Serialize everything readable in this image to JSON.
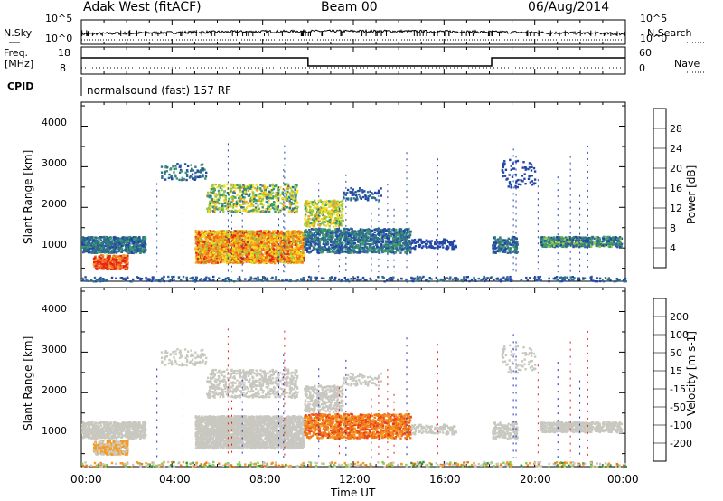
{
  "header": {
    "title": "Adak West (fitACF)",
    "beam": "Beam 00",
    "date": "06/Aug/2014"
  },
  "top_panels": {
    "nsky_label": "N.Sky",
    "nsearch_label": "N.Search",
    "freq_label_line1": "Freq.",
    "freq_label_line2": "[MHz]",
    "nave_label": "Nave",
    "cpid_label": "CPID",
    "cpid_text": "normalsound (fast) 157 RF",
    "noise_ticks_left": [
      "10^5",
      "10^0"
    ],
    "noise_ticks_right": [
      "10^5",
      "10^0"
    ],
    "freq_ticks": [
      "18",
      "8"
    ],
    "nave_ticks": [
      "60",
      "0"
    ]
  },
  "chart_data": [
    {
      "type": "heatmap",
      "name": "power",
      "ylabel": "Slant Range [km]",
      "yticks": [
        "1000",
        "2000",
        "3000",
        "4000"
      ],
      "ylim": [
        180,
        4590
      ],
      "xlim_hours": [
        0,
        24
      ],
      "colorbar_label": "Power [dB]",
      "colorbar_ticks": [
        "4",
        "8",
        "12",
        "16",
        "20",
        "24",
        "28"
      ],
      "colorbar_range": [
        0,
        32
      ]
    },
    {
      "type": "heatmap",
      "name": "velocity",
      "ylabel": "Slant Range [km]",
      "yticks": [
        "1000",
        "2000",
        "3000",
        "4000"
      ],
      "ylim": [
        180,
        4590
      ],
      "xlim_hours": [
        0,
        24
      ],
      "colorbar_label": "Velocity [m s-1]",
      "colorbar_ticks": [
        "200",
        "100",
        "50",
        "15",
        "-15",
        "-50",
        "-100",
        "-200"
      ]
    }
  ],
  "xaxis": {
    "ticks": [
      "00:00",
      "04:00",
      "08:00",
      "12:00",
      "16:00",
      "20:00",
      "00:00"
    ],
    "label": "Time UT"
  },
  "colors": {
    "power_scale": [
      "#1f1ff5",
      "#2346a8",
      "#2f6e8c",
      "#3d9a6a",
      "#9cc843",
      "#f5dd1f",
      "#f5a21f",
      "#f06e1a",
      "#e8231a"
    ],
    "velocity_scale": [
      "#1f2ab8",
      "#3c6a8e",
      "#2e8f3c",
      "#7fd04a",
      "#c8c8c0",
      "#f59b1f",
      "#f07a1a",
      "#e8431a",
      "#e81a1a"
    ]
  }
}
